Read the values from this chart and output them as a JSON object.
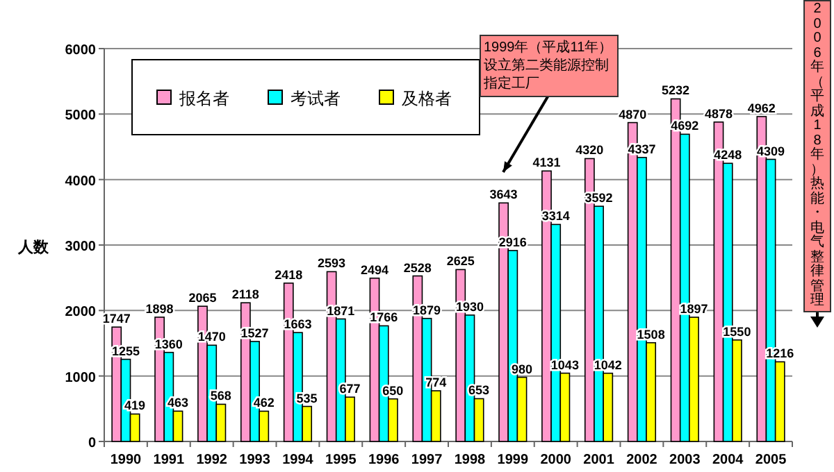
{
  "chart_data": {
    "type": "bar",
    "ylabel": "人数",
    "categories": [
      "1990",
      "1991",
      "1992",
      "1993",
      "1994",
      "1995",
      "1996",
      "1997",
      "1998",
      "1999",
      "2000",
      "2001",
      "2002",
      "2003",
      "2004",
      "2005"
    ],
    "series": [
      {
        "name": "报名者",
        "color": "#ff99cc",
        "values": [
          1747,
          1898,
          2065,
          2118,
          2418,
          2593,
          2494,
          2528,
          2625,
          3643,
          4131,
          4320,
          4870,
          5232,
          4878,
          4962
        ]
      },
      {
        "name": "考试者",
        "color": "#00ffff",
        "values": [
          1255,
          1360,
          1470,
          1527,
          1663,
          1871,
          1766,
          1879,
          1930,
          2916,
          3314,
          3592,
          4337,
          4692,
          4248,
          4309
        ]
      },
      {
        "name": "及格者",
        "color": "#ffff00",
        "values": [
          419,
          463,
          568,
          462,
          535,
          677,
          650,
          774,
          653,
          980,
          1043,
          1042,
          1508,
          1897,
          1550,
          1216
        ]
      }
    ],
    "ylim": [
      0,
      6000
    ],
    "yticks": [
      0,
      1000,
      2000,
      3000,
      4000,
      5000,
      6000
    ],
    "grid": "y",
    "legend": "top left",
    "data_labels": true,
    "annotations": [
      "1999年（平成11年）设立第二类能源控制指定工厂",
      "2006年（平成18年）热能・电气整律管理"
    ]
  }
}
